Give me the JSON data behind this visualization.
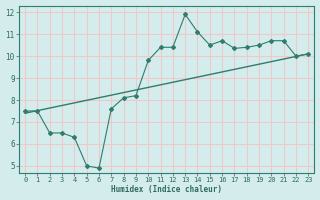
{
  "xlabel": "Humidex (Indice chaleur)",
  "ylabel": "",
  "xlim": [
    -0.5,
    23.5
  ],
  "ylim": [
    4.7,
    12.3
  ],
  "yticks": [
    5,
    6,
    7,
    8,
    9,
    10,
    11,
    12
  ],
  "xticks": [
    0,
    1,
    2,
    3,
    4,
    5,
    6,
    7,
    8,
    9,
    10,
    11,
    12,
    13,
    14,
    15,
    16,
    17,
    18,
    19,
    20,
    21,
    22,
    23
  ],
  "line1_x": [
    0,
    1,
    2,
    3,
    4,
    5,
    6,
    7,
    8,
    9,
    10,
    11,
    12,
    13,
    14,
    15,
    16,
    17,
    18,
    19,
    20,
    21,
    22,
    23
  ],
  "line1_y": [
    7.5,
    7.5,
    6.5,
    6.5,
    6.3,
    5.0,
    4.9,
    7.6,
    8.1,
    8.2,
    9.8,
    10.4,
    10.4,
    11.9,
    11.1,
    10.5,
    10.7,
    10.35,
    10.4,
    10.5,
    10.7,
    10.7,
    10.0,
    10.1
  ],
  "line2_x": [
    0,
    23
  ],
  "line2_y": [
    7.4,
    10.1
  ],
  "line_color": "#2E7D6E",
  "bg_color": "#d4ecec",
  "grid_color": "#f0c8c8",
  "font_color": "#2E6B60",
  "spine_color": "#2E7D6E"
}
